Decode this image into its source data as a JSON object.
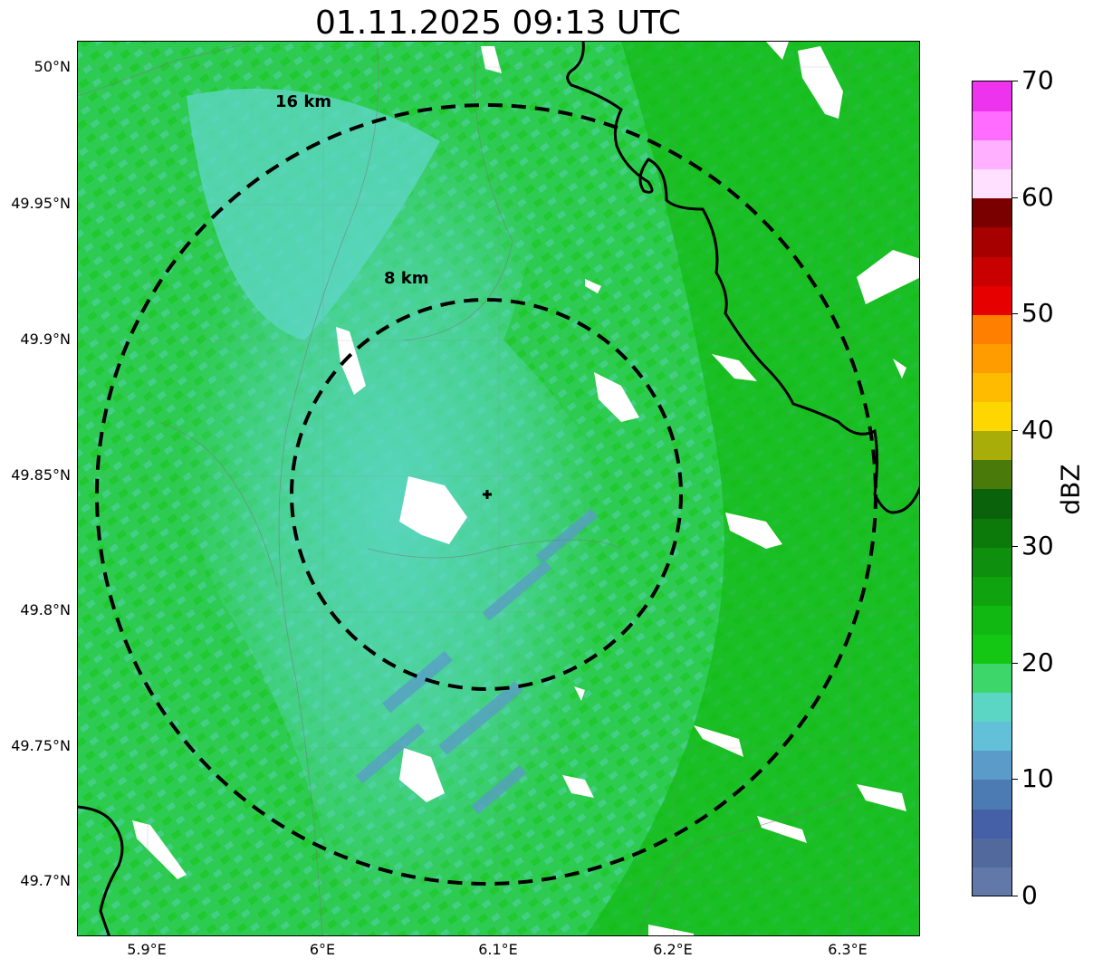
{
  "title": "01.11.2025 09:13 UTC",
  "map": {
    "lat_labels": [
      "50°N",
      "49.95°N",
      "49.9°N",
      "49.85°N",
      "49.8°N",
      "49.75°N",
      "49.7°N"
    ],
    "lon_labels": [
      "5.9°E",
      "6°E",
      "6.1°E",
      "6.2°E",
      "6.3°E"
    ],
    "rings": [
      {
        "label": "16 km"
      },
      {
        "label": "8 km"
      }
    ],
    "background_color": "#3dd66b",
    "radar_site_marker": "plus-icon"
  },
  "colorbar": {
    "label": "dBZ",
    "ticks": [
      "0",
      "10",
      "20",
      "30",
      "40",
      "50",
      "60",
      "70"
    ],
    "range": [
      0,
      70
    ],
    "step": 2.5,
    "colors": [
      "#6278a8",
      "#52699e",
      "#4560a6",
      "#4c7bb3",
      "#5a9bc9",
      "#62c0d8",
      "#5cd6c4",
      "#3dd66b",
      "#14c714",
      "#12b812",
      "#0fa30f",
      "#0e8f0e",
      "#0b7a0b",
      "#0a620a",
      "#4a7a0a",
      "#a8ad0a",
      "#ffd700",
      "#ffbb00",
      "#ff9c00",
      "#ff7f00",
      "#e60000",
      "#c90000",
      "#a60000",
      "#7a0000",
      "#ffe0ff",
      "#ffb0ff",
      "#ff6cff",
      "#ee33ee"
    ]
  }
}
